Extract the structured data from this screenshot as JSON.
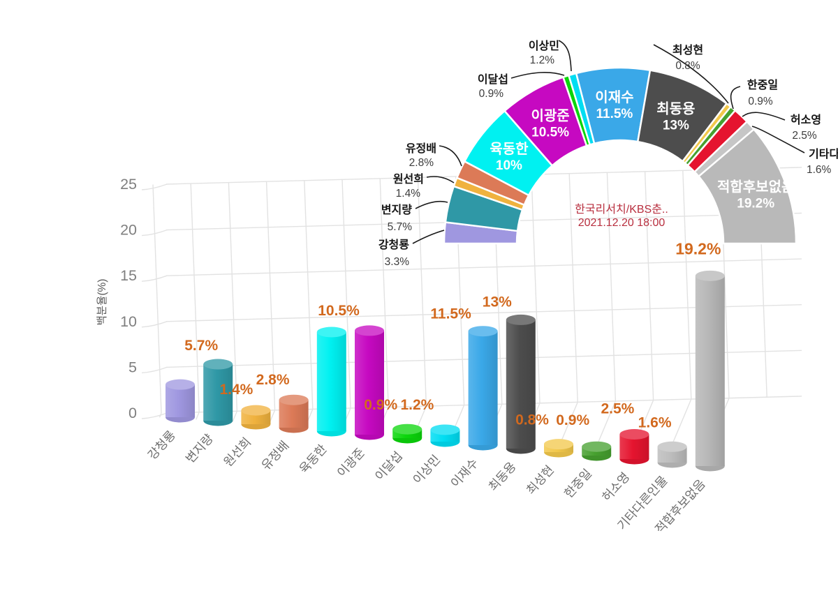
{
  "source_note": {
    "line1": "한국리서치/KBS춘..",
    "line2": "2021.12.20 18:00",
    "color": "#b82e3e"
  },
  "palette_note": {
    "value_label_color": "#d2691e",
    "grid_color": "#e2e2e2",
    "axis_text_color": "#7f7f7f",
    "callout_text_color": "#1a1a1a"
  },
  "chart_data": [
    {
      "type": "pie",
      "subtype": "semicircle-donut",
      "unit": "%",
      "categories": [
        "강청룡",
        "변지량",
        "원선희",
        "유정배",
        "육동한",
        "이광준",
        "이달섭",
        "이상민",
        "이재수",
        "최동용",
        "최성현",
        "한중일",
        "허소영",
        "기타다른인물",
        "적합후보없음"
      ],
      "values": [
        3.3,
        5.7,
        1.4,
        2.8,
        10,
        10.5,
        0.9,
        1.2,
        11.5,
        13,
        0.8,
        0.9,
        2.5,
        1.6,
        19.2
      ],
      "labels": [
        "3.3%",
        "5.7%",
        "1.4%",
        "2.8%",
        "10%",
        "10.5%",
        "0.9%",
        "1.2%",
        "11.5%",
        "13%",
        "0.8%",
        "0.9%",
        "2.5%",
        "1.6%",
        "19.2%"
      ],
      "colors": [
        "#9f97e0",
        "#2f98a6",
        "#f0b23e",
        "#dc7a57",
        "#00f1f1",
        "#c609c1",
        "#0bd60b",
        "#00ddf2",
        "#3aa8e8",
        "#4d4d4d",
        "#f2c84b",
        "#46a02f",
        "#e5142f",
        "#c6c6c6",
        "#b9b9b9"
      ],
      "label_placement": [
        "callout",
        "callout",
        "callout",
        "callout",
        "inside",
        "inside",
        "callout",
        "callout",
        "inside",
        "inside",
        "callout",
        "callout",
        "callout",
        "callout",
        "inside"
      ],
      "legend": false,
      "annotation": {
        "line1": "한국리서치/KBS춘..",
        "line2": "2021.12.20 18:00"
      }
    },
    {
      "type": "bar",
      "subtype": "3d-cylinder",
      "unit": "%",
      "categories": [
        "강청룡",
        "변지량",
        "원선희",
        "유정배",
        "육동한",
        "이광준",
        "이달섭",
        "이상민",
        "이재수",
        "최동용",
        "최성현",
        "한중일",
        "허소영",
        "기타다른인물",
        "적합후보없음"
      ],
      "values": [
        3.3,
        5.7,
        1.4,
        2.8,
        10,
        10.5,
        0.9,
        1.2,
        11.5,
        13,
        0.8,
        0.9,
        2.5,
        1.6,
        19.2
      ],
      "value_labels": [
        "",
        "5.7%",
        "1.4%",
        "2.8%",
        "",
        "10.5%",
        "0.9%",
        "1.2%",
        "11.5%",
        "13%",
        "0.8%",
        "0.9%",
        "2.5%",
        "1.6%",
        "19.2%"
      ],
      "colors": [
        "#9f97e0",
        "#2f98a6",
        "#f0b23e",
        "#dc7a57",
        "#00f1f1",
        "#c609c1",
        "#0bd60b",
        "#00ddf2",
        "#3aa8e8",
        "#4d4d4d",
        "#f2c84b",
        "#46a02f",
        "#e5142f",
        "#bdbdbd",
        "#b7b7b7"
      ],
      "xlabel": "",
      "ylabel": "백분율(%)",
      "ylim": [
        0,
        25
      ],
      "yticks": [
        "0",
        "5",
        "10",
        "15",
        "20",
        "25"
      ],
      "grid": true,
      "legend": false
    }
  ]
}
